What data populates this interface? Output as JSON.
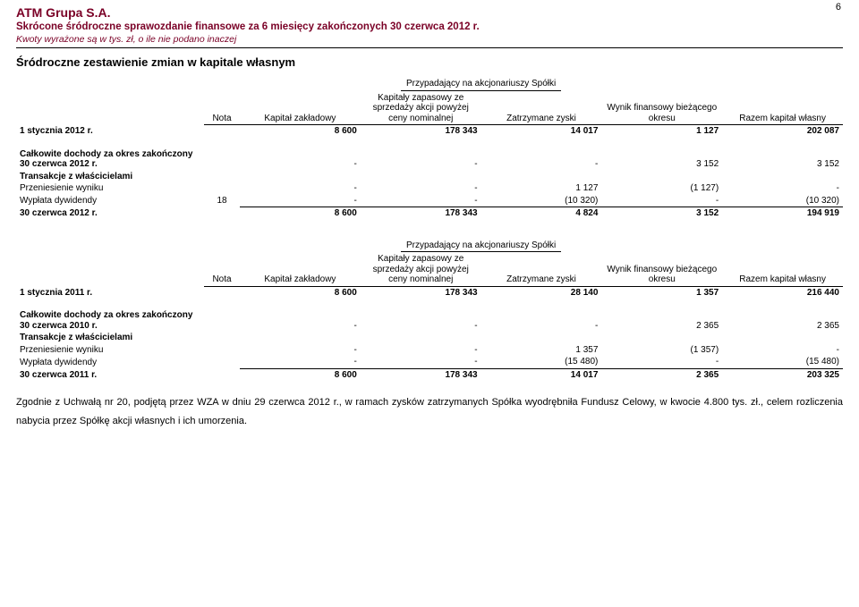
{
  "page_number": "6",
  "header": {
    "company": "ATM Grupa S.A.",
    "line2": "Skrócone śródroczne sprawozdanie finansowe za 6 miesięcy zakończonych 30 czerwca 2012 r.",
    "line3": "Kwoty wyrażone są w tys. zł, o ile nie podano inaczej"
  },
  "section_title": "Śródroczne zestawienie zmian w kapitale własnym",
  "group_caption": "Przypadający na akcjonariuszy Spółki",
  "columns": {
    "nota": "Nota",
    "c1": "Kapitał zakładowy",
    "c2": "Kapitały zapasowy ze sprzedaży akcji powyżej ceny nominalnej",
    "c3": "Zatrzymane zyski",
    "c4": "Wynik finansowy bieżącego okresu",
    "c5": "Razem kapitał własny"
  },
  "table1": {
    "open_label": "1 stycznia 2012 r.",
    "open": {
      "c1": "8 600",
      "c2": "178 343",
      "c3": "14 017",
      "c4": "1 127",
      "c5": "202 087"
    },
    "rows": [
      {
        "label": "Całkowite dochody za okres zakończony 30 czerwca 2012 r.",
        "bold": true,
        "nota": "",
        "c1": "-",
        "c2": "-",
        "c3": "-",
        "c4": "3 152",
        "c5": "3 152"
      },
      {
        "label": "Transakcje z właścicielami",
        "bold": true,
        "nota": "",
        "c1": "",
        "c2": "",
        "c3": "",
        "c4": "",
        "c5": ""
      },
      {
        "label": "Przeniesienie wyniku",
        "nota": "",
        "c1": "-",
        "c2": "-",
        "c3": "1 127",
        "c4": "(1 127)",
        "c5": "-"
      },
      {
        "label": "Wypłata dywidendy",
        "nota": "18",
        "c1": "-",
        "c2": "-",
        "c3": "(10 320)",
        "c4": "-",
        "c5": "(10 320)",
        "underline": true
      }
    ],
    "close_label": "30 czerwca 2012 r.",
    "close": {
      "c1": "8 600",
      "c2": "178 343",
      "c3": "4 824",
      "c4": "3 152",
      "c5": "194 919"
    }
  },
  "table2": {
    "open_label": "1 stycznia 2011 r.",
    "open": {
      "c1": "8 600",
      "c2": "178 343",
      "c3": "28 140",
      "c4": "1 357",
      "c5": "216 440"
    },
    "rows": [
      {
        "label": "Całkowite dochody za okres zakończony 30 czerwca 2010 r.",
        "bold": true,
        "nota": "",
        "c1": "-",
        "c2": "-",
        "c3": "-",
        "c4": "2 365",
        "c5": "2 365"
      },
      {
        "label": "Transakcje z właścicielami",
        "bold": true,
        "nota": "",
        "c1": "",
        "c2": "",
        "c3": "",
        "c4": "",
        "c5": ""
      },
      {
        "label": "Przeniesienie wyniku",
        "nota": "",
        "c1": "-",
        "c2": "-",
        "c3": "1 357",
        "c4": "(1 357)",
        "c5": "-"
      },
      {
        "label": "Wypłata dywidendy",
        "nota": "",
        "c1": "-",
        "c2": "-",
        "c3": "(15 480)",
        "c4": "-",
        "c5": "(15 480)",
        "underline": true
      }
    ],
    "close_label": "30 czerwca 2011 r.",
    "close": {
      "c1": "8 600",
      "c2": "178 343",
      "c3": "14 017",
      "c4": "2 365",
      "c5": "203 325"
    }
  },
  "footnote": "Zgodnie z Uchwałą nr 20, podjętą przez WZA w dniu 29 czerwca 2012 r., w ramach zysków zatrzymanych Spółka wyodrębniła Fundusz Celowy, w kwocie 4.800 tys. zł., celem rozliczenia nabycia przez Spółkę akcji własnych i ich umorzenia."
}
